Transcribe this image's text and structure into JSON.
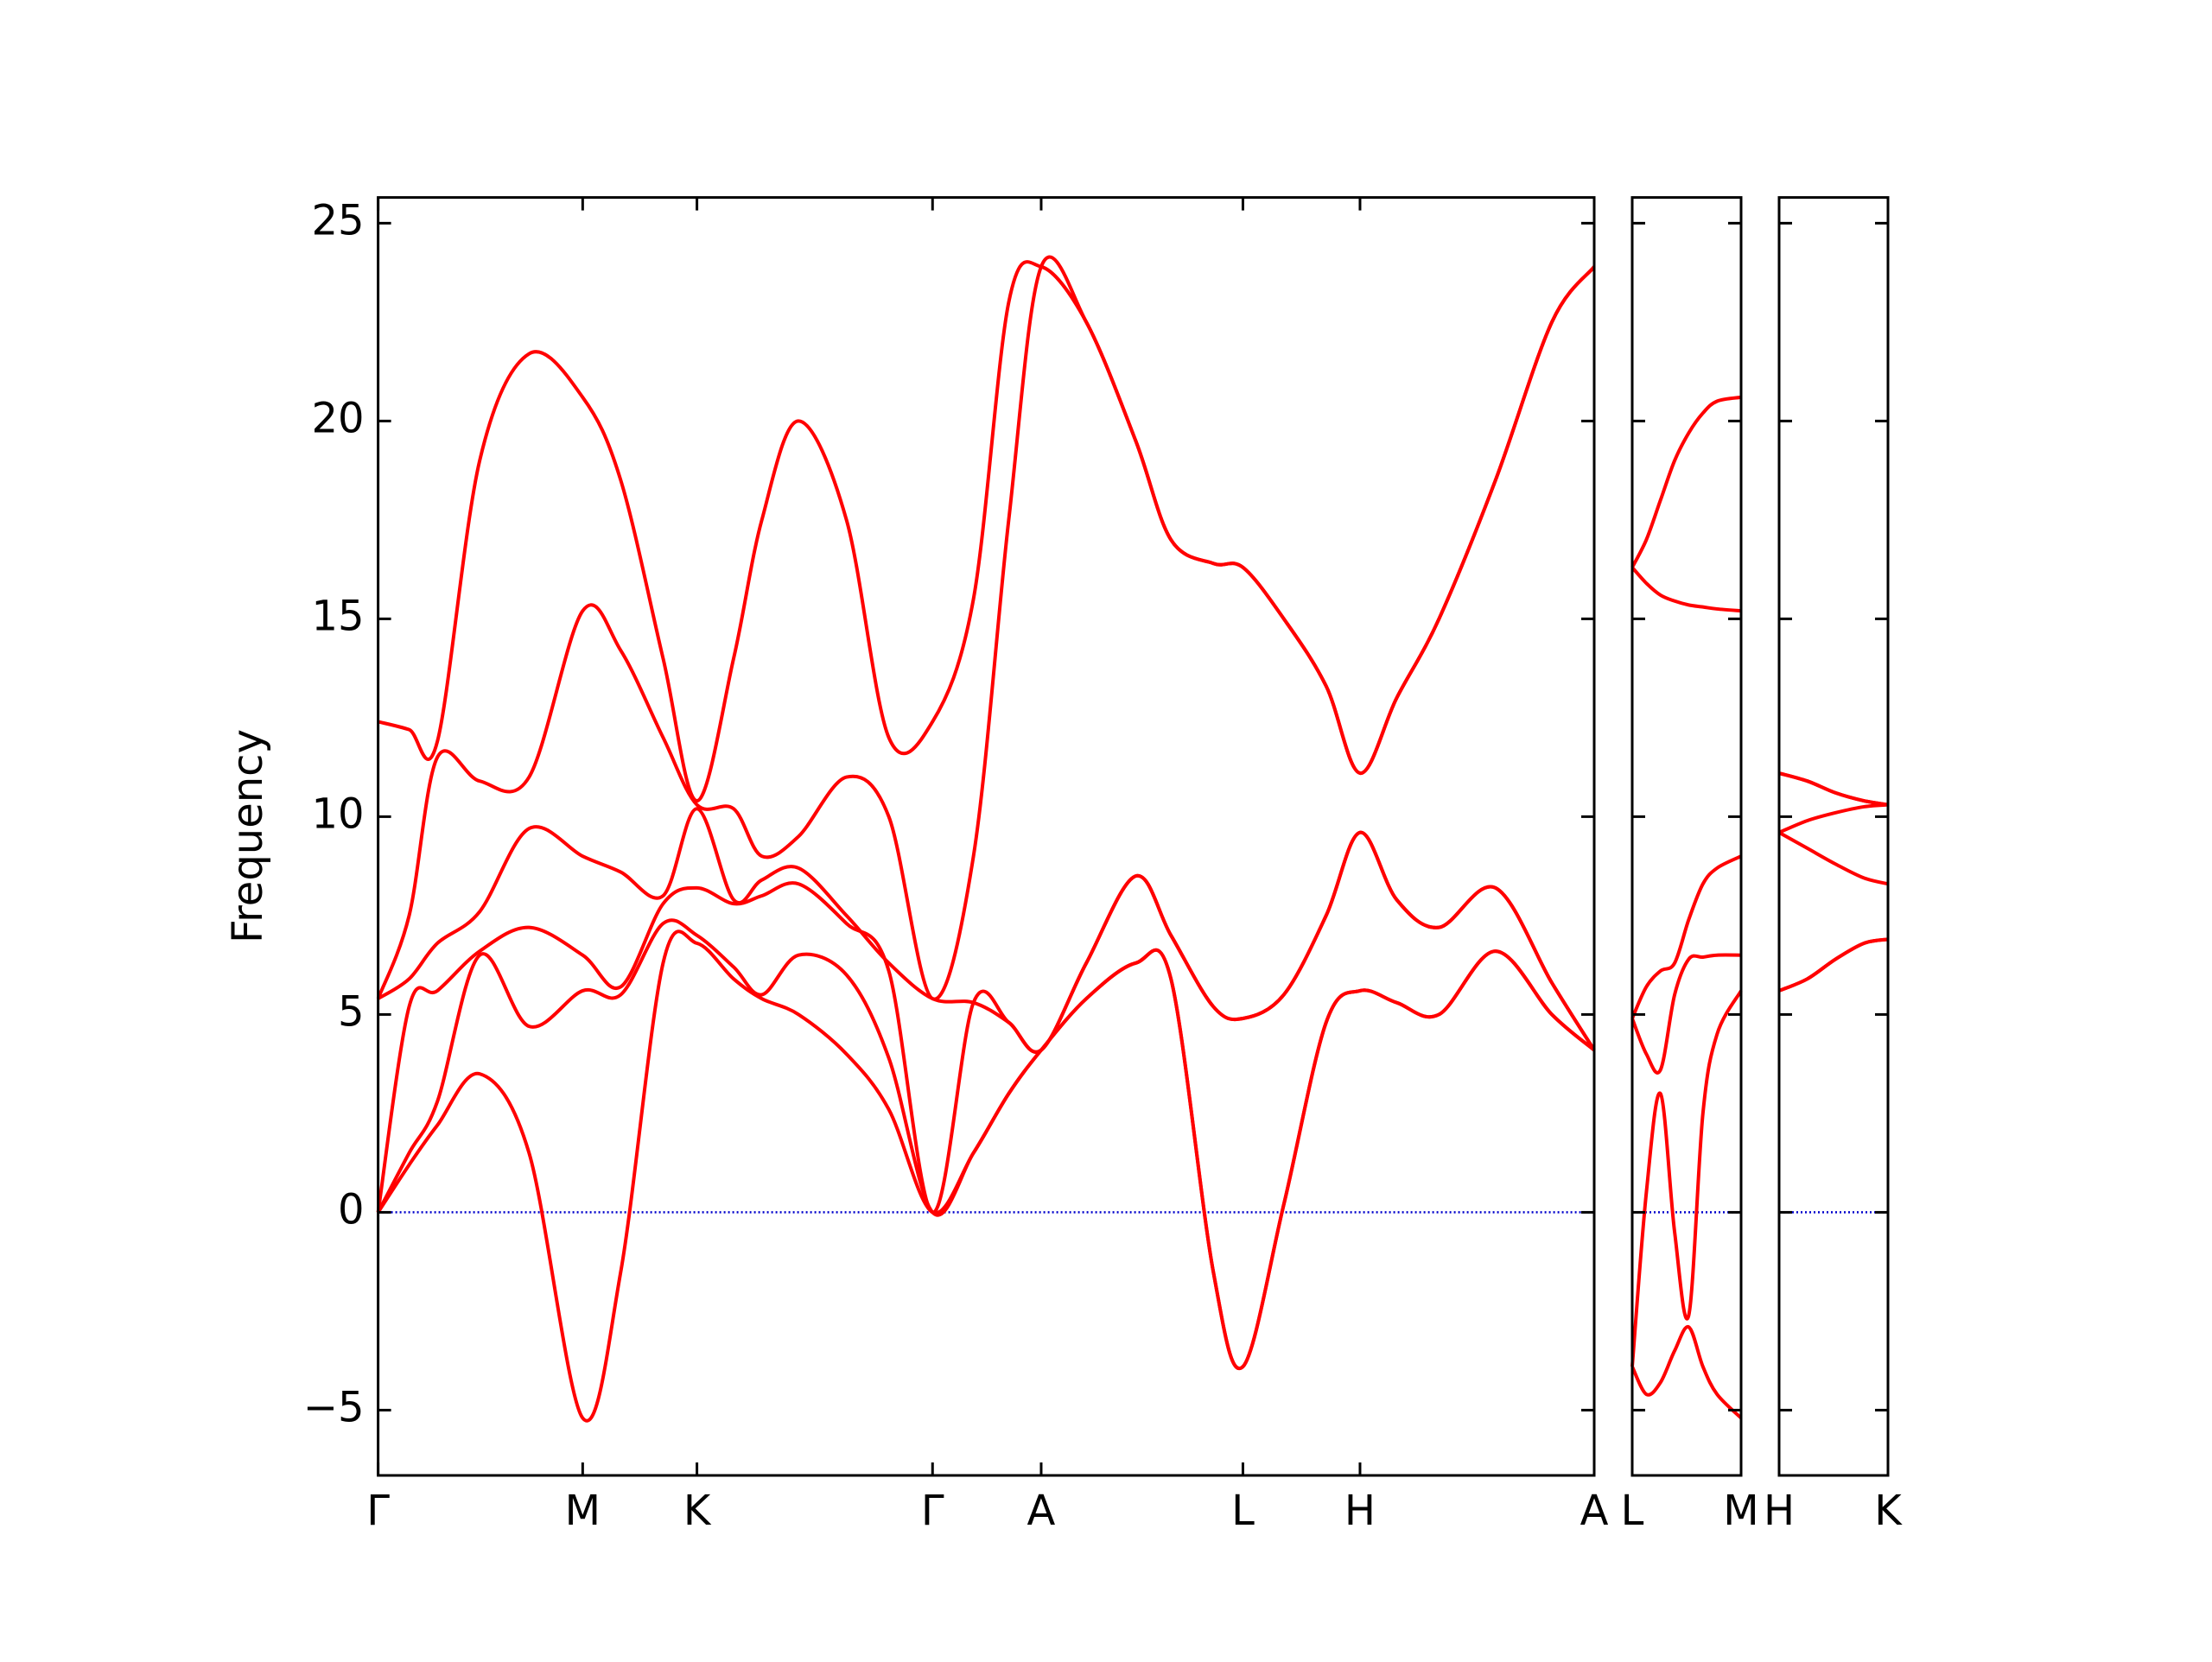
{
  "chart_data": [
    {
      "type": "line",
      "ylabel": "Frequency",
      "color": "#ff0000",
      "xlim": [
        0,
        8.62
      ],
      "ylim": [
        -6.65,
        25.65
      ],
      "xticks": [
        {
          "value": 0,
          "label": "Γ"
        },
        {
          "value": 1.45,
          "label": "M"
        },
        {
          "value": 2.26,
          "label": "K"
        },
        {
          "value": 3.93,
          "label": "Γ"
        },
        {
          "value": 4.7,
          "label": "A"
        },
        {
          "value": 6.13,
          "label": "L"
        },
        {
          "value": 6.96,
          "label": "H"
        },
        {
          "value": 8.62,
          "label": "A"
        }
      ],
      "yticks": [
        {
          "value": -5,
          "label": "−5"
        },
        0,
        5,
        10,
        15,
        20,
        25
      ],
      "hlines": [
        {
          "value": 0,
          "color": "#0000cc"
        }
      ],
      "x": [
        0,
        0.22,
        0.42,
        0.72,
        1.07,
        1.45,
        1.72,
        2.02,
        2.26,
        2.52,
        2.72,
        2.98,
        3.32,
        3.62,
        3.93,
        4.22,
        4.47,
        4.7,
        5.02,
        5.37,
        5.62,
        5.92,
        6.13,
        6.42,
        6.72,
        6.96,
        7.22,
        7.52,
        7.92,
        8.32,
        8.62
      ],
      "series": [
        {
          "values": [
            0,
            1.2,
            2.2,
            3.5,
            1.5,
            -5.2,
            -1.5,
            6.3,
            6.8,
            5.9,
            5.4,
            5.0,
            4.0,
            2.6,
            0,
            1.5,
            3.0,
            4.1,
            5.4,
            6.3,
            5.9,
            -1.5,
            -3.9,
            0.2,
            4.8,
            5.6,
            5.3,
            5.0,
            6.6,
            5.0,
            4.1
          ]
        },
        {
          "values": [
            0,
            1.5,
            2.8,
            6.5,
            4.7,
            5.6,
            5.5,
            7.3,
            7.0,
            6.2,
            5.5,
            6.5,
            6.0,
            3.9,
            0,
            1.5,
            3.0,
            4.1,
            5.4,
            6.3,
            5.9,
            -1.5,
            -3.9,
            0.2,
            4.8,
            5.6,
            5.3,
            5.0,
            6.6,
            5.0,
            4.1
          ]
        },
        {
          "values": [
            0,
            5.2,
            5.6,
            6.6,
            7.2,
            6.5,
            5.7,
            7.8,
            8.2,
            7.8,
            8.0,
            8.3,
            7.3,
            6.1,
            0,
            5.3,
            4.8,
            4.1,
            6.3,
            8.5,
            7.0,
            5.2,
            4.9,
            5.5,
            7.5,
            9.6,
            7.9,
            7.2,
            8.2,
            5.8,
            4.1
          ]
        },
        {
          "values": [
            5.4,
            5.9,
            6.8,
            7.6,
            9.7,
            9.0,
            8.6,
            8.0,
            10.2,
            7.9,
            8.4,
            8.7,
            7.5,
            6.3,
            5.4,
            5.3,
            4.8,
            4.1,
            6.3,
            8.5,
            7.0,
            5.2,
            4.9,
            5.5,
            7.5,
            9.6,
            7.9,
            7.2,
            8.2,
            5.8,
            4.1
          ]
        },
        {
          "values": [
            5.4,
            7.5,
            11.5,
            10.9,
            11.0,
            15.2,
            14.2,
            12.0,
            10.3,
            10.2,
            9.0,
            9.5,
            11.0,
            10.0,
            5.4,
            9.0,
            17.5,
            23.9,
            22.5,
            19.5,
            17.0,
            16.4,
            16.3,
            15.0,
            13.3,
            11.1,
            13.0,
            15.0,
            18.5,
            22.5,
            23.9
          ]
        },
        {
          "values": [
            12.4,
            12.2,
            11.9,
            19.0,
            21.7,
            20.6,
            18.5,
            14.0,
            10.4,
            14.0,
            17.5,
            20.0,
            17.5,
            12.0,
            12.4,
            15.5,
            23.0,
            23.9,
            22.5,
            19.5,
            17.0,
            16.4,
            16.3,
            15.0,
            13.3,
            11.1,
            13.0,
            15.0,
            18.5,
            22.5,
            23.9
          ]
        }
      ]
    },
    {
      "type": "line",
      "color": "#ff0000",
      "xlim": [
        0,
        0.77
      ],
      "ylim": [
        -6.65,
        25.65
      ],
      "xticks": [
        {
          "value": 0,
          "label": "L"
        },
        {
          "value": 0.77,
          "label": "M"
        }
      ],
      "yticks": [
        -5,
        0,
        5,
        10,
        15,
        20,
        25
      ],
      "hlines": [
        {
          "value": 0,
          "color": "#0000cc"
        }
      ],
      "x": [
        0,
        0.1,
        0.2,
        0.3,
        0.4,
        0.5,
        0.6,
        0.77
      ],
      "series": [
        {
          "values": [
            -3.9,
            -4.6,
            -4.3,
            -3.5,
            -2.9,
            -3.9,
            -4.6,
            -5.2
          ]
        },
        {
          "values": [
            -3.9,
            0.5,
            3.0,
            -0.5,
            -2.6,
            2.5,
            4.5,
            5.6
          ]
        },
        {
          "values": [
            4.9,
            4.0,
            3.6,
            5.5,
            6.4,
            6.45,
            6.5,
            6.5
          ]
        },
        {
          "values": [
            4.9,
            5.7,
            6.1,
            6.3,
            7.4,
            8.3,
            8.7,
            9.0
          ]
        },
        {
          "values": [
            16.3,
            15.9,
            15.6,
            15.45,
            15.35,
            15.3,
            15.25,
            15.2
          ]
        },
        {
          "values": [
            16.3,
            17.0,
            18.0,
            19.0,
            19.7,
            20.2,
            20.5,
            20.6
          ]
        }
      ]
    },
    {
      "type": "line",
      "color": "#ff0000",
      "xlim": [
        0,
        0.77
      ],
      "ylim": [
        -6.65,
        25.65
      ],
      "xticks": [
        {
          "value": 0,
          "label": "H"
        },
        {
          "value": 0.77,
          "label": "K"
        }
      ],
      "yticks": [
        -5,
        0,
        5,
        10,
        15,
        20,
        25
      ],
      "hlines": [
        {
          "value": 0,
          "color": "#0000cc"
        }
      ],
      "x": [
        0,
        0.2,
        0.4,
        0.6,
        0.77
      ],
      "series": [
        {
          "values": [
            5.6,
            5.9,
            6.4,
            6.8,
            6.9
          ]
        },
        {
          "values": [
            5.6,
            5.9,
            6.4,
            6.8,
            6.9
          ]
        },
        {
          "values": [
            9.6,
            9.2,
            8.8,
            8.45,
            8.3
          ]
        },
        {
          "values": [
            9.6,
            9.9,
            10.1,
            10.25,
            10.3
          ]
        },
        {
          "values": [
            11.1,
            10.9,
            10.6,
            10.4,
            10.3
          ]
        },
        {
          "values": [
            11.1,
            10.9,
            10.6,
            10.4,
            10.3
          ]
        }
      ]
    }
  ]
}
